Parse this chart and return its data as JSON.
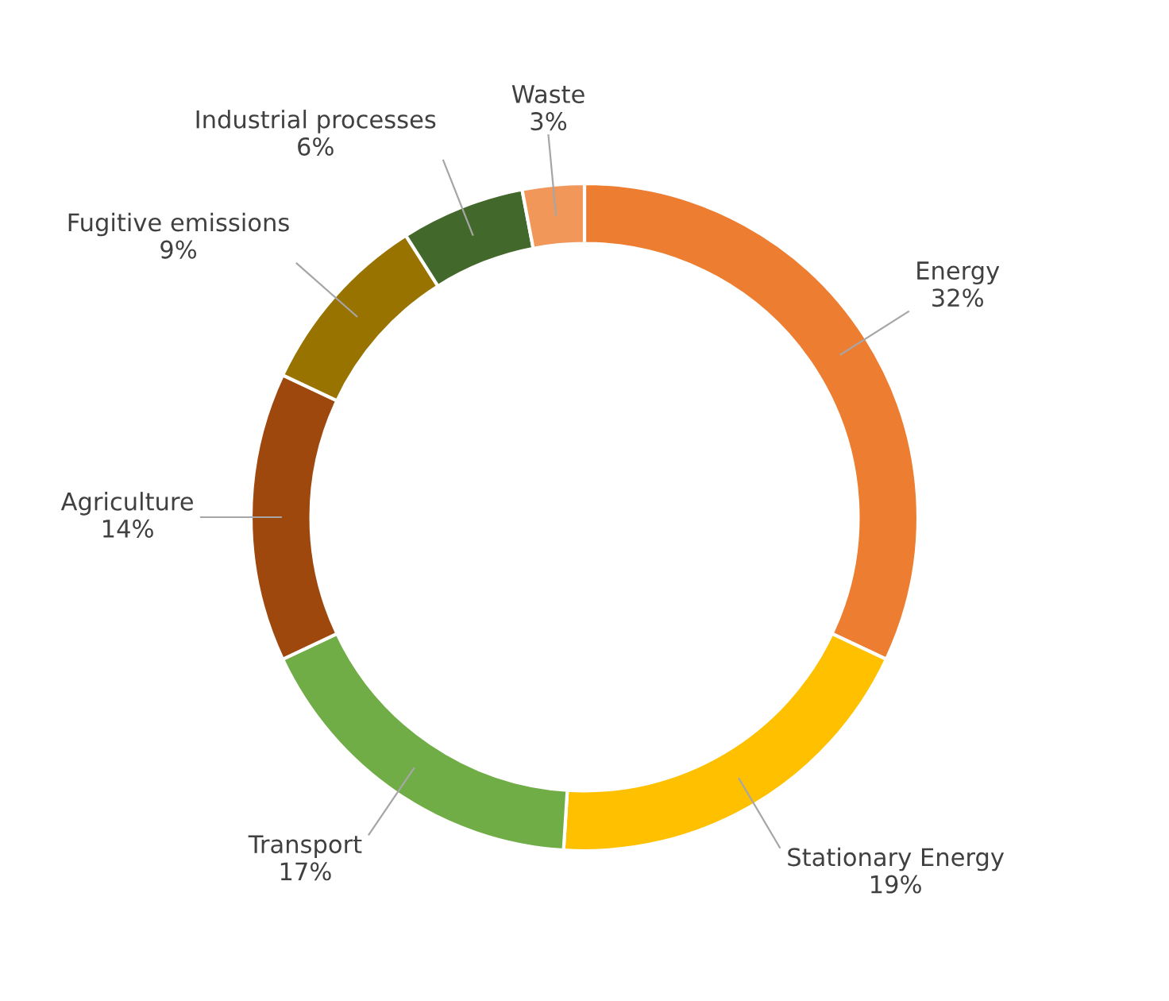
{
  "chart_data": {
    "type": "donut",
    "categories": [
      "Energy",
      "Stationary Energy",
      "Transport",
      "Agriculture",
      "Fugitive emissions",
      "Industrial processes",
      "Waste"
    ],
    "values": [
      32,
      19,
      17,
      14,
      9,
      6,
      3
    ],
    "value_labels": [
      "32%",
      "19%",
      "17%",
      "14%",
      "9%",
      "6%",
      "3%"
    ],
    "colors": [
      "#ed7d31",
      "#ffc000",
      "#70ad47",
      "#9e480e",
      "#997300",
      "#43682b",
      "#f1975a"
    ],
    "legend": false
  }
}
